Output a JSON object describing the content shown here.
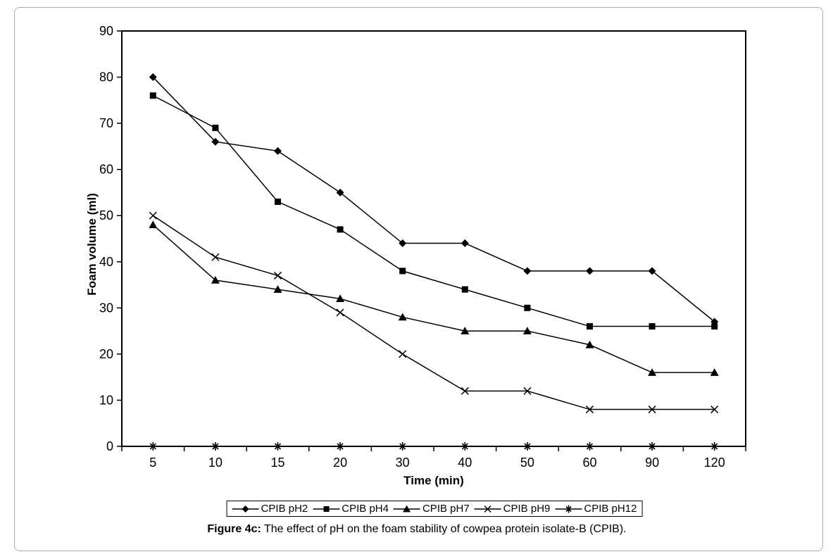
{
  "figure": {
    "caption_bold": "Figure 4c:",
    "caption_rest": " The effect of pH on the foam stability of cowpea protein isolate-B (CPIB)."
  },
  "chart_data": {
    "type": "line",
    "title": "",
    "xlabel": "Time (min)",
    "ylabel": "Foam volume (ml)",
    "categories": [
      "5",
      "10",
      "15",
      "20",
      "30",
      "40",
      "50",
      "60",
      "90",
      "120"
    ],
    "ylim": [
      0,
      90
    ],
    "yticks": [
      0,
      10,
      20,
      30,
      40,
      50,
      60,
      70,
      80,
      90
    ],
    "grid": false,
    "legend_position": "bottom",
    "stroke_color": "#000000",
    "series": [
      {
        "name": "CPIB pH2",
        "marker": "diamond",
        "values": [
          80,
          66,
          64,
          55,
          44,
          44,
          38,
          38,
          38,
          27
        ]
      },
      {
        "name": "CPIB pH4",
        "marker": "square",
        "values": [
          76,
          69,
          53,
          47,
          38,
          34,
          30,
          26,
          26,
          26
        ]
      },
      {
        "name": "CPIB pH7",
        "marker": "triangle",
        "values": [
          48,
          36,
          34,
          32,
          28,
          25,
          25,
          22,
          16,
          16
        ]
      },
      {
        "name": "CPIB pH9",
        "marker": "x",
        "values": [
          50,
          41,
          37,
          29,
          20,
          12,
          12,
          8,
          8,
          8
        ]
      },
      {
        "name": "CPIB pH12",
        "marker": "asterisk",
        "values": [
          0,
          0,
          0,
          0,
          0,
          0,
          0,
          0,
          0,
          0
        ]
      }
    ]
  }
}
